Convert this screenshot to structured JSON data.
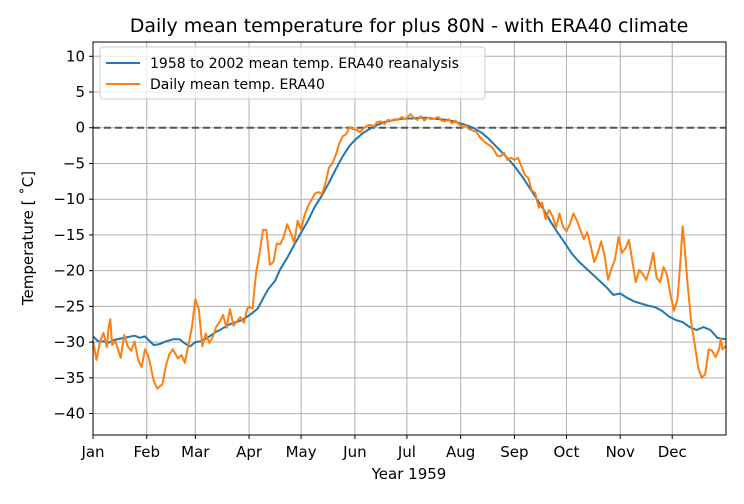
{
  "chart_data": {
    "type": "line",
    "title": "Daily mean temperature for plus 80N - with ERA40 climate",
    "xlabel": "Year 1959",
    "ylabel": "Temperature [$^\\circ$C]",
    "ylabel_display": "Temperature [ ˚C]",
    "xlim": [
      0,
      365
    ],
    "ylim": [
      -43,
      12
    ],
    "yticks": [
      10,
      5,
      0,
      -5,
      -10,
      -15,
      -20,
      -25,
      -30,
      -35,
      -40
    ],
    "ytick_labels": [
      "10",
      "5",
      "0",
      "−5",
      "−10",
      "−15",
      "−20",
      "−25",
      "−30",
      "−35",
      "−40"
    ],
    "xticks": [
      0,
      31,
      59,
      90,
      120,
      151,
      181,
      212,
      243,
      273,
      304,
      334
    ],
    "xtick_labels": [
      "Jan",
      "Feb",
      "Mar",
      "Apr",
      "May",
      "Jun",
      "Jul",
      "Aug",
      "Sep",
      "Oct",
      "Nov",
      "Dec"
    ],
    "grid": true,
    "legend_position": "upper-left",
    "reference_line": {
      "y": 0,
      "style": "dashed",
      "color": "#555555"
    },
    "series": [
      {
        "name": "1958 to 2002 mean temp. ERA40 reanalysis",
        "color": "#1f77b4",
        "points": [
          [
            0,
            -29.2
          ],
          [
            3,
            -29.9
          ],
          [
            6,
            -29.9
          ],
          [
            9,
            -30.1
          ],
          [
            12,
            -29.7
          ],
          [
            16,
            -29.5
          ],
          [
            20,
            -29.3
          ],
          [
            24,
            -29.1
          ],
          [
            27,
            -29.4
          ],
          [
            30,
            -29.2
          ],
          [
            32,
            -29.7
          ],
          [
            35,
            -30.4
          ],
          [
            38,
            -30.3
          ],
          [
            42,
            -29.9
          ],
          [
            46,
            -29.6
          ],
          [
            50,
            -29.6
          ],
          [
            53,
            -30.2
          ],
          [
            56,
            -30.6
          ],
          [
            59,
            -30.0
          ],
          [
            62,
            -29.9
          ],
          [
            66,
            -29.4
          ],
          [
            70,
            -28.7
          ],
          [
            74,
            -28.2
          ],
          [
            78,
            -27.6
          ],
          [
            81,
            -27.3
          ],
          [
            85,
            -27.0
          ],
          [
            88,
            -26.6
          ],
          [
            91,
            -26.1
          ],
          [
            95,
            -25.3
          ],
          [
            98,
            -23.9
          ],
          [
            101,
            -22.6
          ],
          [
            105,
            -21.4
          ],
          [
            108,
            -19.8
          ],
          [
            112,
            -18.2
          ],
          [
            116,
            -16.4
          ],
          [
            120,
            -14.7
          ],
          [
            124,
            -13.0
          ],
          [
            128,
            -11.0
          ],
          [
            132,
            -9.5
          ],
          [
            136,
            -7.7
          ],
          [
            140,
            -5.8
          ],
          [
            144,
            -4.0
          ],
          [
            148,
            -2.5
          ],
          [
            152,
            -1.5
          ],
          [
            156,
            -0.7
          ],
          [
            160,
            -0.1
          ],
          [
            164,
            0.4
          ],
          [
            168,
            0.8
          ],
          [
            172,
            1.0
          ],
          [
            176,
            1.2
          ],
          [
            180,
            1.3
          ],
          [
            184,
            1.3
          ],
          [
            188,
            1.4
          ],
          [
            192,
            1.4
          ],
          [
            196,
            1.3
          ],
          [
            200,
            1.2
          ],
          [
            204,
            1.1
          ],
          [
            208,
            0.9
          ],
          [
            212,
            0.6
          ],
          [
            216,
            0.3
          ],
          [
            220,
            -0.1
          ],
          [
            224,
            -0.7
          ],
          [
            228,
            -1.5
          ],
          [
            232,
            -2.5
          ],
          [
            236,
            -3.5
          ],
          [
            240,
            -4.5
          ],
          [
            244,
            -5.7
          ],
          [
            248,
            -7.0
          ],
          [
            252,
            -8.5
          ],
          [
            256,
            -10.0
          ],
          [
            260,
            -11.5
          ],
          [
            264,
            -13.2
          ],
          [
            268,
            -14.7
          ],
          [
            272,
            -16.1
          ],
          [
            276,
            -17.6
          ],
          [
            280,
            -18.7
          ],
          [
            284,
            -19.6
          ],
          [
            288,
            -20.5
          ],
          [
            292,
            -21.4
          ],
          [
            296,
            -22.3
          ],
          [
            300,
            -23.4
          ],
          [
            304,
            -23.2
          ],
          [
            308,
            -23.8
          ],
          [
            312,
            -24.3
          ],
          [
            316,
            -24.6
          ],
          [
            320,
            -24.9
          ],
          [
            324,
            -25.1
          ],
          [
            328,
            -25.6
          ],
          [
            332,
            -26.4
          ],
          [
            336,
            -26.9
          ],
          [
            340,
            -27.2
          ],
          [
            344,
            -27.9
          ],
          [
            348,
            -28.3
          ],
          [
            352,
            -27.9
          ],
          [
            356,
            -28.3
          ],
          [
            360,
            -29.4
          ],
          [
            365,
            -29.6
          ]
        ]
      },
      {
        "name": "Daily mean temp. ERA40",
        "color": "#ff7f0e",
        "points": [
          [
            0,
            -29.8
          ],
          [
            2,
            -32.5
          ],
          [
            4,
            -30.0
          ],
          [
            6,
            -28.7
          ],
          [
            8,
            -30.7
          ],
          [
            9,
            -27.9
          ],
          [
            10,
            -26.8
          ],
          [
            11,
            -30.4
          ],
          [
            13,
            -29.9
          ],
          [
            16,
            -32.2
          ],
          [
            18,
            -29.0
          ],
          [
            20,
            -30.6
          ],
          [
            22,
            -31.2
          ],
          [
            24,
            -29.9
          ],
          [
            26,
            -32.5
          ],
          [
            28,
            -33.5
          ],
          [
            30,
            -31.0
          ],
          [
            32,
            -32.0
          ],
          [
            35,
            -35.4
          ],
          [
            37,
            -36.5
          ],
          [
            40,
            -35.9
          ],
          [
            42,
            -33.4
          ],
          [
            44,
            -31.7
          ],
          [
            46,
            -31.0
          ],
          [
            49,
            -32.3
          ],
          [
            51,
            -31.8
          ],
          [
            53,
            -32.9
          ],
          [
            55,
            -30.4
          ],
          [
            57,
            -27.9
          ],
          [
            59,
            -24.0
          ],
          [
            61,
            -25.4
          ],
          [
            63,
            -30.6
          ],
          [
            65,
            -28.8
          ],
          [
            67,
            -30.1
          ],
          [
            69,
            -29.3
          ],
          [
            71,
            -27.9
          ],
          [
            73,
            -27.2
          ],
          [
            75,
            -26.2
          ],
          [
            77,
            -28.0
          ],
          [
            79,
            -25.4
          ],
          [
            81,
            -27.7
          ],
          [
            83,
            -27.1
          ],
          [
            85,
            -26.5
          ],
          [
            87,
            -27.3
          ],
          [
            89,
            -25.3
          ],
          [
            90,
            -25.1
          ],
          [
            92,
            -25.3
          ],
          [
            94,
            -20.4
          ],
          [
            96,
            -17.6
          ],
          [
            98,
            -14.3
          ],
          [
            100,
            -14.3
          ],
          [
            102,
            -19.2
          ],
          [
            104,
            -18.8
          ],
          [
            106,
            -16.2
          ],
          [
            108,
            -16.3
          ],
          [
            110,
            -15.2
          ],
          [
            112,
            -13.5
          ],
          [
            114,
            -14.7
          ],
          [
            116,
            -16.1
          ],
          [
            118,
            -13.0
          ],
          [
            120,
            -14.3
          ],
          [
            122,
            -12.2
          ],
          [
            124,
            -11.0
          ],
          [
            126,
            -10.1
          ],
          [
            128,
            -9.2
          ],
          [
            130,
            -9.0
          ],
          [
            132,
            -9.3
          ],
          [
            134,
            -7.8
          ],
          [
            136,
            -5.6
          ],
          [
            138,
            -5.0
          ],
          [
            140,
            -3.8
          ],
          [
            142,
            -2.2
          ],
          [
            144,
            -1.2
          ],
          [
            146,
            -0.9
          ],
          [
            148,
            0.1
          ],
          [
            150,
            -0.2
          ],
          [
            152,
            -0.3
          ],
          [
            154,
            -0.6
          ],
          [
            156,
            -0.1
          ],
          [
            158,
            0.3
          ],
          [
            160,
            0.4
          ],
          [
            162,
            0.2
          ],
          [
            164,
            0.8
          ],
          [
            166,
            0.9
          ],
          [
            168,
            0.5
          ],
          [
            170,
            1.1
          ],
          [
            172,
            1.0
          ],
          [
            174,
            1.2
          ],
          [
            176,
            1.1
          ],
          [
            178,
            1.5
          ],
          [
            180,
            1.2
          ],
          [
            182,
            1.6
          ],
          [
            183,
            1.9
          ],
          [
            185,
            1.4
          ],
          [
            187,
            1.1
          ],
          [
            189,
            1.6
          ],
          [
            191,
            1.0
          ],
          [
            193,
            1.4
          ],
          [
            195,
            1.2
          ],
          [
            197,
            1.3
          ],
          [
            199,
            1.5
          ],
          [
            201,
            1.0
          ],
          [
            203,
            0.9
          ],
          [
            205,
            1.2
          ],
          [
            207,
            0.6
          ],
          [
            209,
            1.0
          ],
          [
            211,
            0.5
          ],
          [
            213,
            0.1
          ],
          [
            215,
            0.3
          ],
          [
            217,
            -0.2
          ],
          [
            219,
            -0.4
          ],
          [
            221,
            -0.6
          ],
          [
            223,
            -1.3
          ],
          [
            225,
            -1.8
          ],
          [
            227,
            -2.2
          ],
          [
            229,
            -2.5
          ],
          [
            231,
            -3.0
          ],
          [
            233,
            -3.9
          ],
          [
            235,
            -4.0
          ],
          [
            237,
            -3.5
          ],
          [
            239,
            -4.5
          ],
          [
            241,
            -4.2
          ],
          [
            243,
            -4.5
          ],
          [
            245,
            -4.2
          ],
          [
            247,
            -5.4
          ],
          [
            249,
            -6.6
          ],
          [
            251,
            -7.0
          ],
          [
            253,
            -8.8
          ],
          [
            255,
            -9.1
          ],
          [
            257,
            -11.2
          ],
          [
            259,
            -10.5
          ],
          [
            261,
            -12.8
          ],
          [
            263,
            -11.5
          ],
          [
            265,
            -12.4
          ],
          [
            267,
            -14.0
          ],
          [
            269,
            -12.0
          ],
          [
            271,
            -13.8
          ],
          [
            273,
            -14.5
          ],
          [
            275,
            -13.5
          ],
          [
            277,
            -12.0
          ],
          [
            279,
            -13.0
          ],
          [
            281,
            -14.3
          ],
          [
            283,
            -15.6
          ],
          [
            285,
            -14.6
          ],
          [
            287,
            -16.5
          ],
          [
            289,
            -18.8
          ],
          [
            291,
            -17.6
          ],
          [
            293,
            -15.9
          ],
          [
            295,
            -17.9
          ],
          [
            297,
            -21.3
          ],
          [
            299,
            -19.7
          ],
          [
            301,
            -18.4
          ],
          [
            303,
            -15.3
          ],
          [
            305,
            -17.5
          ],
          [
            307,
            -16.9
          ],
          [
            309,
            -15.7
          ],
          [
            311,
            -18.7
          ],
          [
            313,
            -21.6
          ],
          [
            315,
            -19.9
          ],
          [
            317,
            -20.5
          ],
          [
            319,
            -21.3
          ],
          [
            321,
            -19.8
          ],
          [
            323,
            -17.5
          ],
          [
            325,
            -21.0
          ],
          [
            327,
            -21.6
          ],
          [
            329,
            -19.5
          ],
          [
            331,
            -20.6
          ],
          [
            333,
            -23.4
          ],
          [
            335,
            -25.6
          ],
          [
            337,
            -24.0
          ],
          [
            338,
            -21.0
          ],
          [
            339,
            -17.7
          ],
          [
            340,
            -13.8
          ],
          [
            341,
            -16.3
          ],
          [
            343,
            -22.2
          ],
          [
            345,
            -27.3
          ],
          [
            347,
            -30.4
          ],
          [
            349,
            -33.6
          ],
          [
            351,
            -35.0
          ],
          [
            353,
            -34.5
          ],
          [
            355,
            -31.0
          ],
          [
            357,
            -31.2
          ],
          [
            359,
            -32.1
          ],
          [
            361,
            -31.0
          ],
          [
            362,
            -29.5
          ],
          [
            363,
            -31.0
          ],
          [
            365,
            -30.5
          ]
        ]
      }
    ]
  }
}
